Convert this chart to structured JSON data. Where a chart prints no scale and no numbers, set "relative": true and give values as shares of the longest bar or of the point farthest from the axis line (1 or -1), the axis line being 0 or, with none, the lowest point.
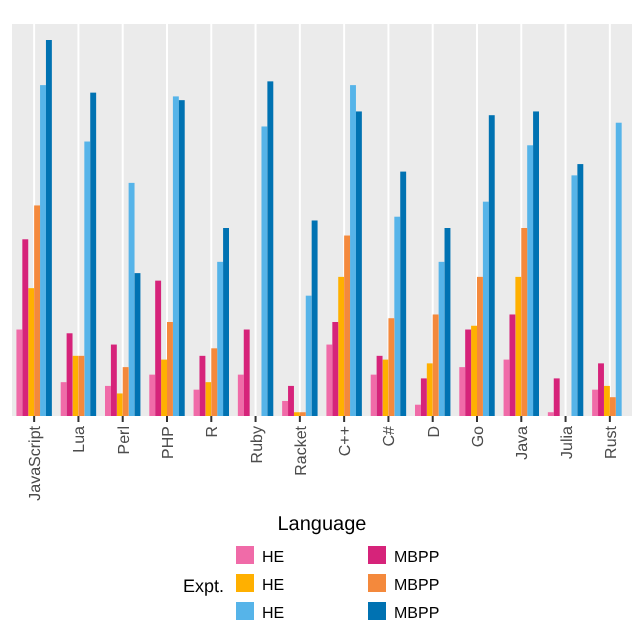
{
  "chart_data": {
    "type": "bar",
    "relative": true,
    "xlabel": "Language",
    "legend_title": "Expt.",
    "legend": "bottom",
    "grid": "x",
    "categories": [
      "JavaScript",
      "Lua",
      "Perl",
      "PHP",
      "R",
      "Ruby",
      "Racket",
      "C++",
      "C#",
      "D",
      "Go",
      "Java",
      "Julia",
      "Rust"
    ],
    "series": [
      {
        "name": "HE",
        "color": "#f06ba8",
        "values": [
          0.23,
          0.09,
          0.08,
          0.11,
          0.07,
          0.11,
          0.04,
          0.19,
          0.11,
          0.03,
          0.13,
          0.15,
          0.01,
          0.07
        ]
      },
      {
        "name": "HE",
        "color": "#ffb000",
        "values": [
          0.34,
          0.16,
          0.06,
          0.15,
          0.09,
          null,
          0.01,
          0.37,
          0.15,
          0.14,
          0.24,
          0.37,
          null,
          0.08
        ]
      },
      {
        "name": "HE",
        "color": "#56b4e9",
        "values": [
          0.88,
          0.73,
          0.62,
          0.85,
          0.41,
          0.77,
          0.32,
          0.88,
          0.53,
          0.41,
          0.57,
          0.72,
          0.64,
          0.78
        ]
      },
      {
        "name": "MBPP",
        "color": "#d6237a",
        "values": [
          0.47,
          0.22,
          0.19,
          0.36,
          0.16,
          0.23,
          0.08,
          0.25,
          0.16,
          0.1,
          0.23,
          0.27,
          0.1,
          0.14
        ]
      },
      {
        "name": "MBPP",
        "color": "#f4893c",
        "values": [
          0.56,
          0.16,
          0.13,
          0.25,
          0.18,
          null,
          0.01,
          0.48,
          0.26,
          0.27,
          0.37,
          0.5,
          null,
          0.05
        ]
      },
      {
        "name": "MBPP",
        "color": "#0072b2",
        "values": [
          1,
          0.86,
          0.38,
          0.84,
          0.5,
          0.89,
          0.52,
          0.81,
          0.65,
          0.5,
          0.8,
          0.81,
          0.67,
          null
        ]
      }
    ]
  }
}
